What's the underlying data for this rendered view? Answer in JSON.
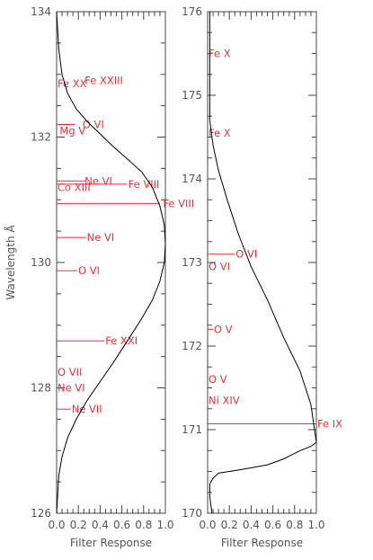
{
  "chart_data": [
    {
      "type": "line",
      "panel": "left",
      "xlabel": "Filter Response",
      "ylabel": "Wavelength Å",
      "xlim": [
        0.0,
        1.0
      ],
      "ylim": [
        126,
        134
      ],
      "xticks": [
        "0.0",
        "0.2",
        "0.4",
        "0.6",
        "0.8",
        "1.0"
      ],
      "yticks": [
        "126",
        "128",
        "130",
        "132",
        "134"
      ],
      "grid": false,
      "line_color": "#000000",
      "marker_color": "#e8303a",
      "series": [
        {
          "x": [
            0.0,
            0.02,
            0.05,
            0.1,
            0.18,
            0.28,
            0.4,
            0.52,
            0.65,
            0.78,
            0.88,
            0.95,
            0.99,
            1.0,
            0.99,
            0.95,
            0.88,
            0.78,
            0.65,
            0.52,
            0.4,
            0.28,
            0.18,
            0.1,
            0.05,
            0.02,
            0.0
          ],
          "y": [
            126.0,
            126.6,
            126.9,
            127.2,
            127.5,
            127.8,
            128.1,
            128.4,
            128.75,
            129.1,
            129.4,
            129.7,
            130.0,
            130.3,
            130.6,
            130.9,
            131.2,
            131.45,
            131.65,
            131.85,
            132.05,
            132.25,
            132.45,
            132.7,
            133.0,
            133.4,
            134.0
          ]
        }
      ],
      "lines": [
        {
          "label": "Fe XXIII",
          "wavelength": 132.9,
          "response": 0.0,
          "label_x": 0.25,
          "label_y": 132.9
        },
        {
          "label": "Fe XX",
          "wavelength": 132.85,
          "response": 0.0,
          "label_x": 0.0,
          "label_y": 132.85
        },
        {
          "label": "O VI",
          "wavelength": 132.2,
          "response": 0.17,
          "label_x": 0.23,
          "label_y": 132.2
        },
        {
          "label": "Mg V",
          "wavelength": 132.1,
          "response": 0.0,
          "label_x": 0.02,
          "label_y": 132.1
        },
        {
          "label": "Ne VI",
          "wavelength": 131.3,
          "response": 0.27,
          "label_x": 0.25,
          "label_y": 131.3
        },
        {
          "label": "Fe VIII",
          "wavelength": 131.25,
          "response": 0.65,
          "label_x": 0.65,
          "label_y": 131.25
        },
        {
          "label": "Co XIII",
          "wavelength": 131.2,
          "response": 0.0,
          "label_x": 0.0,
          "label_y": 131.2
        },
        {
          "label": "Fe VIII",
          "wavelength": 130.94,
          "response": 0.95,
          "label_x": 0.97,
          "label_y": 130.94
        },
        {
          "label": "Ne VI",
          "wavelength": 130.4,
          "response": 0.27,
          "label_x": 0.27,
          "label_y": 130.4
        },
        {
          "label": "O VI",
          "wavelength": 129.87,
          "response": 0.19,
          "label_x": 0.19,
          "label_y": 129.87
        },
        {
          "label": "Fe XXI",
          "wavelength": 128.75,
          "response": 0.44,
          "label_x": 0.44,
          "label_y": 128.75
        },
        {
          "label": "O VII",
          "wavelength": 128.25,
          "response": 0.0,
          "label_x": 0.0,
          "label_y": 128.25
        },
        {
          "label": "Ne VI",
          "wavelength": 128.0,
          "response": 0.0,
          "label_x": 0.0,
          "label_y": 128.0
        },
        {
          "label": "Ne VII",
          "wavelength": 127.66,
          "response": 0.13,
          "label_x": 0.13,
          "label_y": 127.66
        }
      ]
    },
    {
      "type": "line",
      "panel": "right",
      "xlabel": "Filter Response",
      "ylabel": "",
      "xlim": [
        0.0,
        1.0
      ],
      "ylim": [
        170,
        176
      ],
      "xticks": [
        "0.0",
        "0.2",
        "0.4",
        "0.6",
        "0.8",
        "1.0"
      ],
      "yticks": [
        "170",
        "171",
        "172",
        "173",
        "174",
        "175",
        "176"
      ],
      "grid": false,
      "line_color": "#000000",
      "marker_color": "#e8303a",
      "series": [
        {
          "x": [
            0.04,
            0.02,
            0.02,
            0.05,
            0.1,
            0.3,
            0.55,
            0.7,
            0.85,
            0.95,
            1.0,
            0.95,
            0.85,
            0.7,
            0.55,
            0.4,
            0.28,
            0.18,
            0.1,
            0.05,
            0.02,
            0.02,
            0.02,
            0.02
          ],
          "y": [
            170.0,
            170.2,
            170.35,
            170.42,
            170.48,
            170.52,
            170.58,
            170.65,
            170.75,
            170.8,
            170.85,
            171.3,
            171.7,
            172.1,
            172.55,
            172.95,
            173.35,
            173.75,
            174.1,
            174.4,
            174.7,
            175.0,
            175.5,
            176.0
          ]
        }
      ],
      "lines": [
        {
          "label": "Fe X",
          "wavelength": 175.5,
          "response": 0.0,
          "label_x": 0.0,
          "label_y": 175.5
        },
        {
          "label": "Fe X",
          "wavelength": 174.55,
          "response": 0.0,
          "label_x": 0.0,
          "label_y": 174.55
        },
        {
          "label": "O VI",
          "wavelength": 173.1,
          "response": 0.25,
          "label_x": 0.25,
          "label_y": 173.1
        },
        {
          "label": "O VI",
          "wavelength": 172.95,
          "response": 0.0,
          "label_x": 0.0,
          "label_y": 172.95
        },
        {
          "label": "O V",
          "wavelength": 172.2,
          "response": 0.05,
          "label_x": 0.05,
          "label_y": 172.2
        },
        {
          "label": "O V",
          "wavelength": 171.6,
          "response": 0.0,
          "label_x": 0.0,
          "label_y": 171.6
        },
        {
          "label": "Ni XIV",
          "wavelength": 171.35,
          "response": 0.0,
          "label_x": 0.0,
          "label_y": 171.35
        },
        {
          "label": "Fe IX",
          "wavelength": 171.07,
          "response": 1.0,
          "label_x": 1.0,
          "label_y": 171.07
        }
      ]
    }
  ]
}
